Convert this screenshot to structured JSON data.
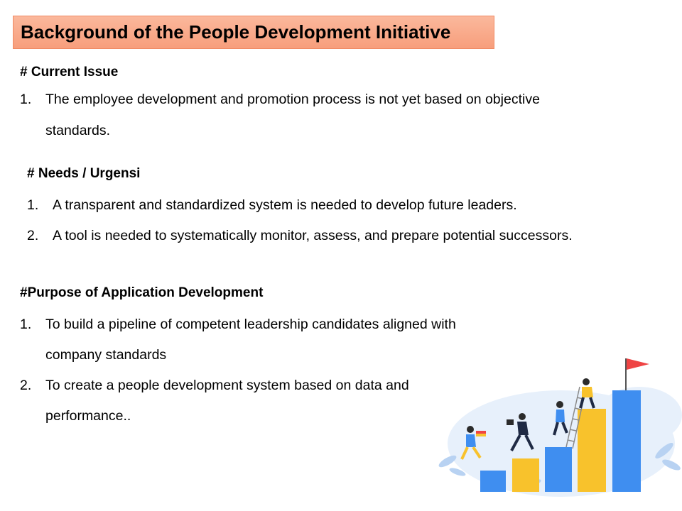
{
  "slide": {
    "title": "Background of the People Development Initiative",
    "current_issue": {
      "heading": "# Current Issue",
      "items": [
        {
          "num": "1.",
          "line1": "The employee development and promotion process is not yet based on objective",
          "line2": "standards."
        }
      ]
    },
    "needs": {
      "heading": "# Needs / Urgensi",
      "items": [
        {
          "num": "1.",
          "text": "A transparent and standardized system is needed to develop future leaders."
        },
        {
          "num": "2.",
          "text": "A tool is needed to systematically monitor, assess, and prepare potential successors."
        }
      ]
    },
    "purpose": {
      "heading": "#Purpose of Application Development",
      "items": [
        {
          "num": "1.",
          "line1": "To build a pipeline of competent leadership candidates aligned with",
          "line2": "company standards"
        },
        {
          "num": "2.",
          "line1": "To create a people development system based on data and",
          "line2": "performance.."
        }
      ]
    },
    "illustration": {
      "bar_colors": [
        "#3f8ef0",
        "#f8c22c",
        "#3f8ef0",
        "#f8c22c",
        "#3f8ef0"
      ],
      "flag_color": "#ef4444"
    }
  }
}
